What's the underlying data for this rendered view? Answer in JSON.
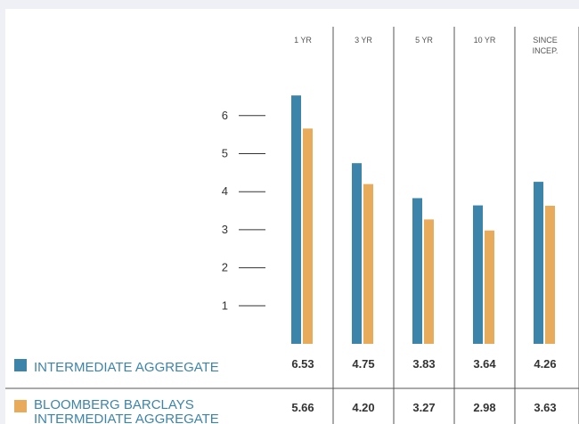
{
  "colors": {
    "intermediate": "#3d84ab",
    "benchmark": "#e8ab5c",
    "divider": "#555555",
    "tick": "#333333",
    "legend_text": "#3d84ab"
  },
  "chart_data": {
    "type": "bar",
    "categories": [
      "1 YR",
      "3 YR",
      "5 YR",
      "10 YR",
      "SINCE INCEP."
    ],
    "category_lines": [
      [
        "1 YR"
      ],
      [
        "3 YR"
      ],
      [
        "5 YR"
      ],
      [
        "10 YR"
      ],
      [
        "SINCE",
        "INCEP."
      ]
    ],
    "ylim": [
      0,
      7
    ],
    "yticks": [
      1,
      2,
      3,
      4,
      5,
      6
    ],
    "grid": false,
    "legend_position": "bottom-left",
    "series": [
      {
        "name": "INTERMEDIATE AGGREGATE",
        "name_lines": [
          "INTERMEDIATE AGGREGATE"
        ],
        "values": [
          6.53,
          4.75,
          3.83,
          3.64,
          4.26
        ],
        "labels": [
          "6.53",
          "4.75",
          "3.83",
          "3.64",
          "4.26"
        ],
        "color": "#3d84ab"
      },
      {
        "name": "BLOOMBERG BARCLAYS INTERMEDIATE AGGREGATE",
        "name_lines": [
          "BLOOMBERG BARCLAYS",
          "INTERMEDIATE AGGREGATE"
        ],
        "values": [
          5.66,
          4.2,
          3.27,
          2.98,
          3.63
        ],
        "labels": [
          "5.66",
          "4.20",
          "3.27",
          "2.98",
          "3.63"
        ],
        "color": "#e8ab5c"
      }
    ]
  }
}
